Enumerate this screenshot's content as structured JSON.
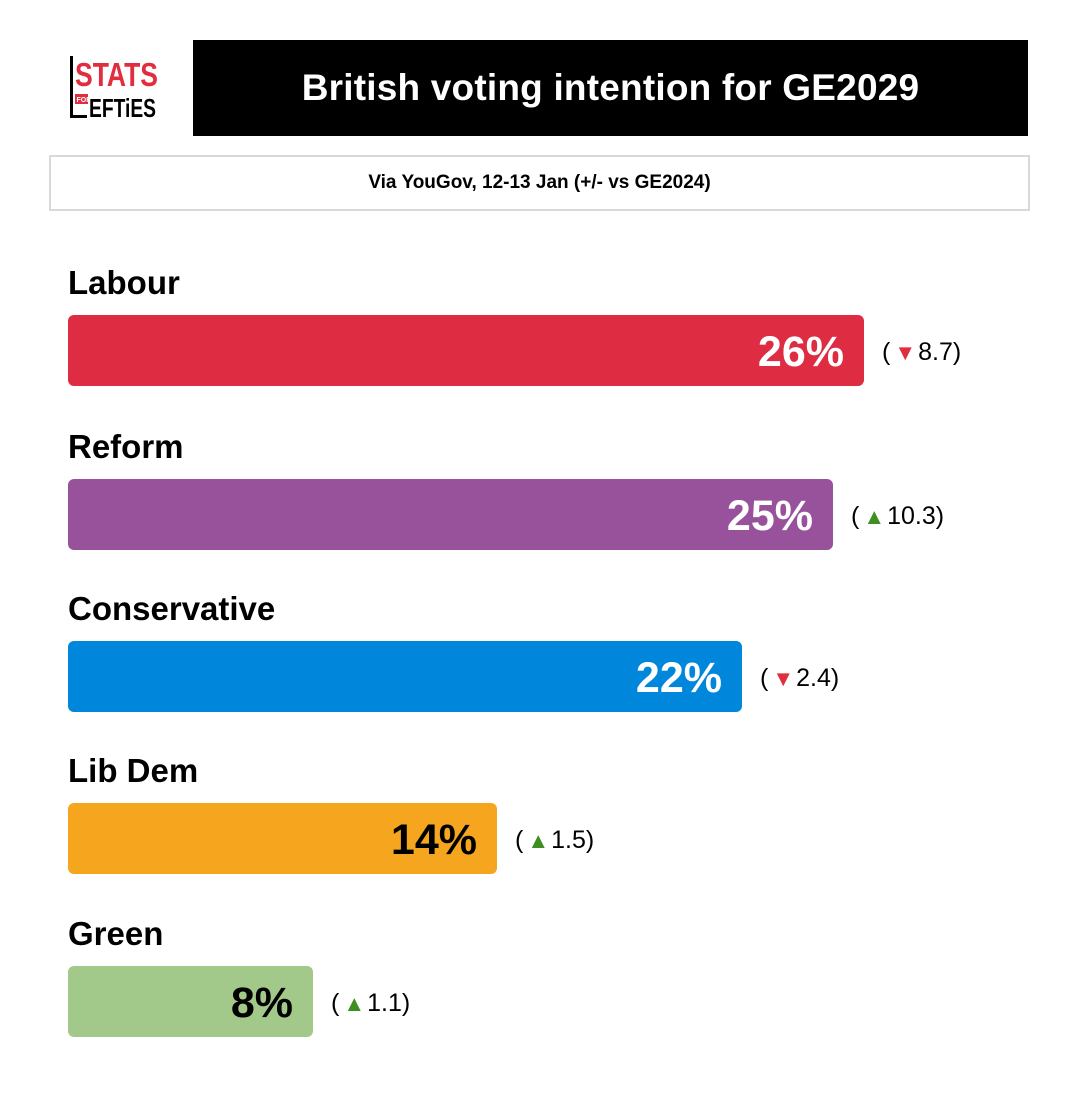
{
  "logo": {
    "line1": "STATS",
    "line2_small": "FOR",
    "line2": "EFTiES"
  },
  "header": {
    "title": "British voting intention for GE2029",
    "subtitle": "Via YouGov, 12-13 Jan (+/- vs GE2024)"
  },
  "colors": {
    "up": "#3e8e21",
    "down": "#e02e3e"
  },
  "chart_data": {
    "type": "bar",
    "orientation": "horizontal",
    "title": "British voting intention for GE2029",
    "subtitle": "Via YouGov, 12-13 Jan (+/- vs GE2024)",
    "unit": "%",
    "xlim": [
      0,
      26
    ],
    "grid": false,
    "categories": [
      "Labour",
      "Reform",
      "Conservative",
      "Lib Dem",
      "Green"
    ],
    "values": [
      26,
      25,
      22,
      14,
      8
    ],
    "value_labels": [
      "26%",
      "25%",
      "22%",
      "14%",
      "8%"
    ],
    "bar_colors": [
      "#de2c42",
      "#97529b",
      "#0087dc",
      "#f6a51e",
      "#a3c98a"
    ],
    "label_colors": [
      "#ffffff",
      "#ffffff",
      "#ffffff",
      "#000000",
      "#000000"
    ],
    "changes": [
      {
        "direction": "down",
        "arrow": "▼",
        "value": "8.7"
      },
      {
        "direction": "up",
        "arrow": "▲",
        "value": "10.3"
      },
      {
        "direction": "down",
        "arrow": "▼",
        "value": "2.4"
      },
      {
        "direction": "up",
        "arrow": "▲",
        "value": "1.5"
      },
      {
        "direction": "up",
        "arrow": "▲",
        "value": "1.1"
      }
    ]
  }
}
